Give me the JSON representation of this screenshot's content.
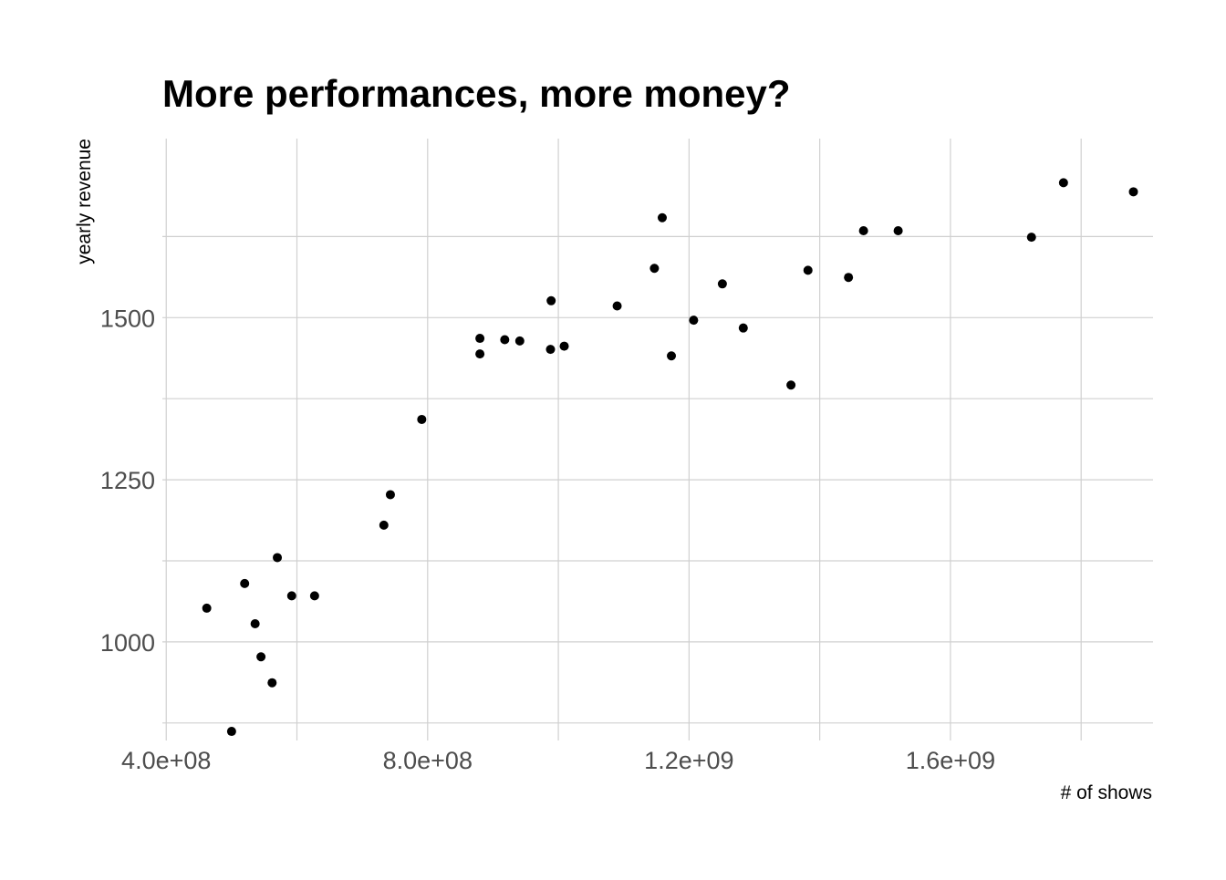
{
  "chart_data": {
    "type": "scatter",
    "title": "More performances, more money?",
    "xlabel": "# of shows",
    "ylabel": "yearly revenue",
    "xlim": [
      355000000,
      1910000000
    ],
    "ylim": [
      848,
      1776
    ],
    "x_ticks": [
      {
        "value": 400000000,
        "label": "4.0e+08"
      },
      {
        "value": 800000000,
        "label": "8.0e+08"
      },
      {
        "value": 1200000000,
        "label": "1.2e+09"
      },
      {
        "value": 1600000000,
        "label": "1.6e+09"
      }
    ],
    "x_minor_ticks": [
      600000000,
      1000000000,
      1400000000,
      1800000000
    ],
    "y_ticks": [
      {
        "value": 1000,
        "label": "1000"
      },
      {
        "value": 1250,
        "label": "1250"
      },
      {
        "value": 1500,
        "label": "1500"
      }
    ],
    "y_minor_ticks": [
      875,
      1125,
      1375,
      1625
    ],
    "grid": true,
    "legend": "none",
    "point_color": "#000000",
    "points": [
      {
        "x": 462000000,
        "y": 1052
      },
      {
        "x": 500000000,
        "y": 862
      },
      {
        "x": 520000000,
        "y": 1090
      },
      {
        "x": 536000000,
        "y": 1028
      },
      {
        "x": 545000000,
        "y": 977
      },
      {
        "x": 562000000,
        "y": 937
      },
      {
        "x": 570000000,
        "y": 1130
      },
      {
        "x": 592000000,
        "y": 1071
      },
      {
        "x": 627000000,
        "y": 1071
      },
      {
        "x": 733000000,
        "y": 1180
      },
      {
        "x": 743000000,
        "y": 1227
      },
      {
        "x": 791000000,
        "y": 1343
      },
      {
        "x": 880000000,
        "y": 1444
      },
      {
        "x": 880000000,
        "y": 1468
      },
      {
        "x": 918000000,
        "y": 1466
      },
      {
        "x": 941000000,
        "y": 1464
      },
      {
        "x": 988000000,
        "y": 1451
      },
      {
        "x": 989000000,
        "y": 1526
      },
      {
        "x": 1009000000,
        "y": 1456
      },
      {
        "x": 1090000000,
        "y": 1518
      },
      {
        "x": 1147000000,
        "y": 1576
      },
      {
        "x": 1159000000,
        "y": 1654
      },
      {
        "x": 1173000000,
        "y": 1441
      },
      {
        "x": 1207000000,
        "y": 1496
      },
      {
        "x": 1251000000,
        "y": 1552
      },
      {
        "x": 1283000000,
        "y": 1484
      },
      {
        "x": 1356000000,
        "y": 1396
      },
      {
        "x": 1382000000,
        "y": 1573
      },
      {
        "x": 1444000000,
        "y": 1562
      },
      {
        "x": 1467000000,
        "y": 1634
      },
      {
        "x": 1520000000,
        "y": 1634
      },
      {
        "x": 1724000000,
        "y": 1624
      },
      {
        "x": 1773000000,
        "y": 1708
      },
      {
        "x": 1880000000,
        "y": 1694
      }
    ]
  }
}
